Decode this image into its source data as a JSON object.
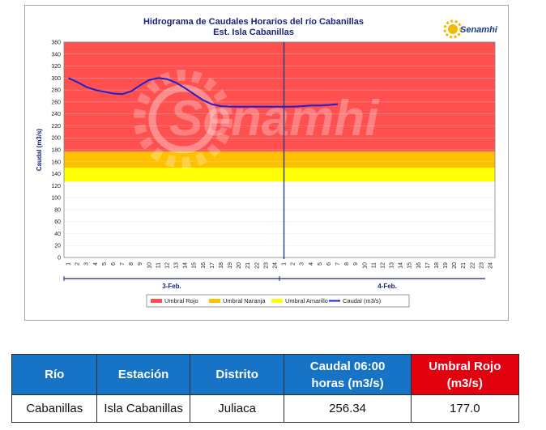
{
  "chart_data": {
    "type": "line",
    "title": "Hidrograma de Caudales Horarios del río Cabanillas",
    "subtitle": "Est. Isla Cabanillas",
    "ylabel": "Caudal  (m3/s)",
    "ylim": [
      0,
      360
    ],
    "yticks": [
      "0",
      "20",
      "40",
      "60",
      "80",
      "100",
      "120",
      "140",
      "160",
      "180",
      "200",
      "220",
      "240",
      "260",
      "280",
      "300",
      "320",
      "340",
      "360"
    ],
    "days": [
      {
        "label": "3-Feb.",
        "hours": [
          "1",
          "2",
          "3",
          "4",
          "5",
          "6",
          "7",
          "8",
          "9",
          "10",
          "11",
          "12",
          "13",
          "14",
          "15",
          "16",
          "17",
          "18",
          "19",
          "20",
          "21",
          "22",
          "23",
          "24"
        ]
      },
      {
        "label": "4-Feb.",
        "hours": [
          "1",
          "2",
          "3",
          "4",
          "5",
          "6",
          "7",
          "8",
          "9",
          "10",
          "11",
          "12",
          "13",
          "14",
          "15",
          "16",
          "17",
          "18",
          "19",
          "20",
          "21",
          "22",
          "23",
          "24"
        ]
      }
    ],
    "thresholds": [
      {
        "name": "Umbral Rojo",
        "from": 177,
        "to": 360,
        "color": "#ff5050"
      },
      {
        "name": "Umbral Naranja",
        "from": 150,
        "to": 177,
        "color": "#ffc000"
      },
      {
        "name": "Umbral Amarillo",
        "from": 127,
        "to": 150,
        "color": "#ffff00"
      }
    ],
    "series": [
      {
        "name": "Caudal (m3/s)",
        "color": "#1f1fd1",
        "x": [
          1,
          2,
          3,
          4,
          5,
          6,
          7,
          8,
          9,
          10,
          11,
          12,
          13,
          14,
          15,
          16,
          17,
          18,
          19,
          20,
          21,
          22,
          23,
          24,
          25,
          26,
          27,
          28,
          29,
          30,
          31
        ],
        "values": [
          300,
          293,
          285,
          280,
          277,
          274,
          273,
          278,
          288,
          297,
          300,
          298,
          292,
          283,
          273,
          263,
          256,
          253,
          252,
          252,
          252,
          252,
          252,
          252,
          252,
          252,
          253,
          254,
          254,
          255,
          256.34
        ]
      }
    ],
    "current_marker_label": "24",
    "grid": true,
    "legend_position": "bottom",
    "watermark": "Senamhi"
  },
  "logo": {
    "text": "Senamhi"
  },
  "table": {
    "headers": {
      "rio": "Río",
      "estacion": "Estación",
      "distrito": "Distrito",
      "caudal_line1": "Caudal  06:00",
      "caudal_line2": "horas (m3/s)",
      "umbral_line1": "Umbral Rojo",
      "umbral_line2": "(m3/s)"
    },
    "row": {
      "rio": "Cabanillas",
      "estacion": "Isla Cabanillas",
      "distrito": "Juliaca",
      "caudal": "256.34",
      "umbral": "177.0"
    }
  }
}
